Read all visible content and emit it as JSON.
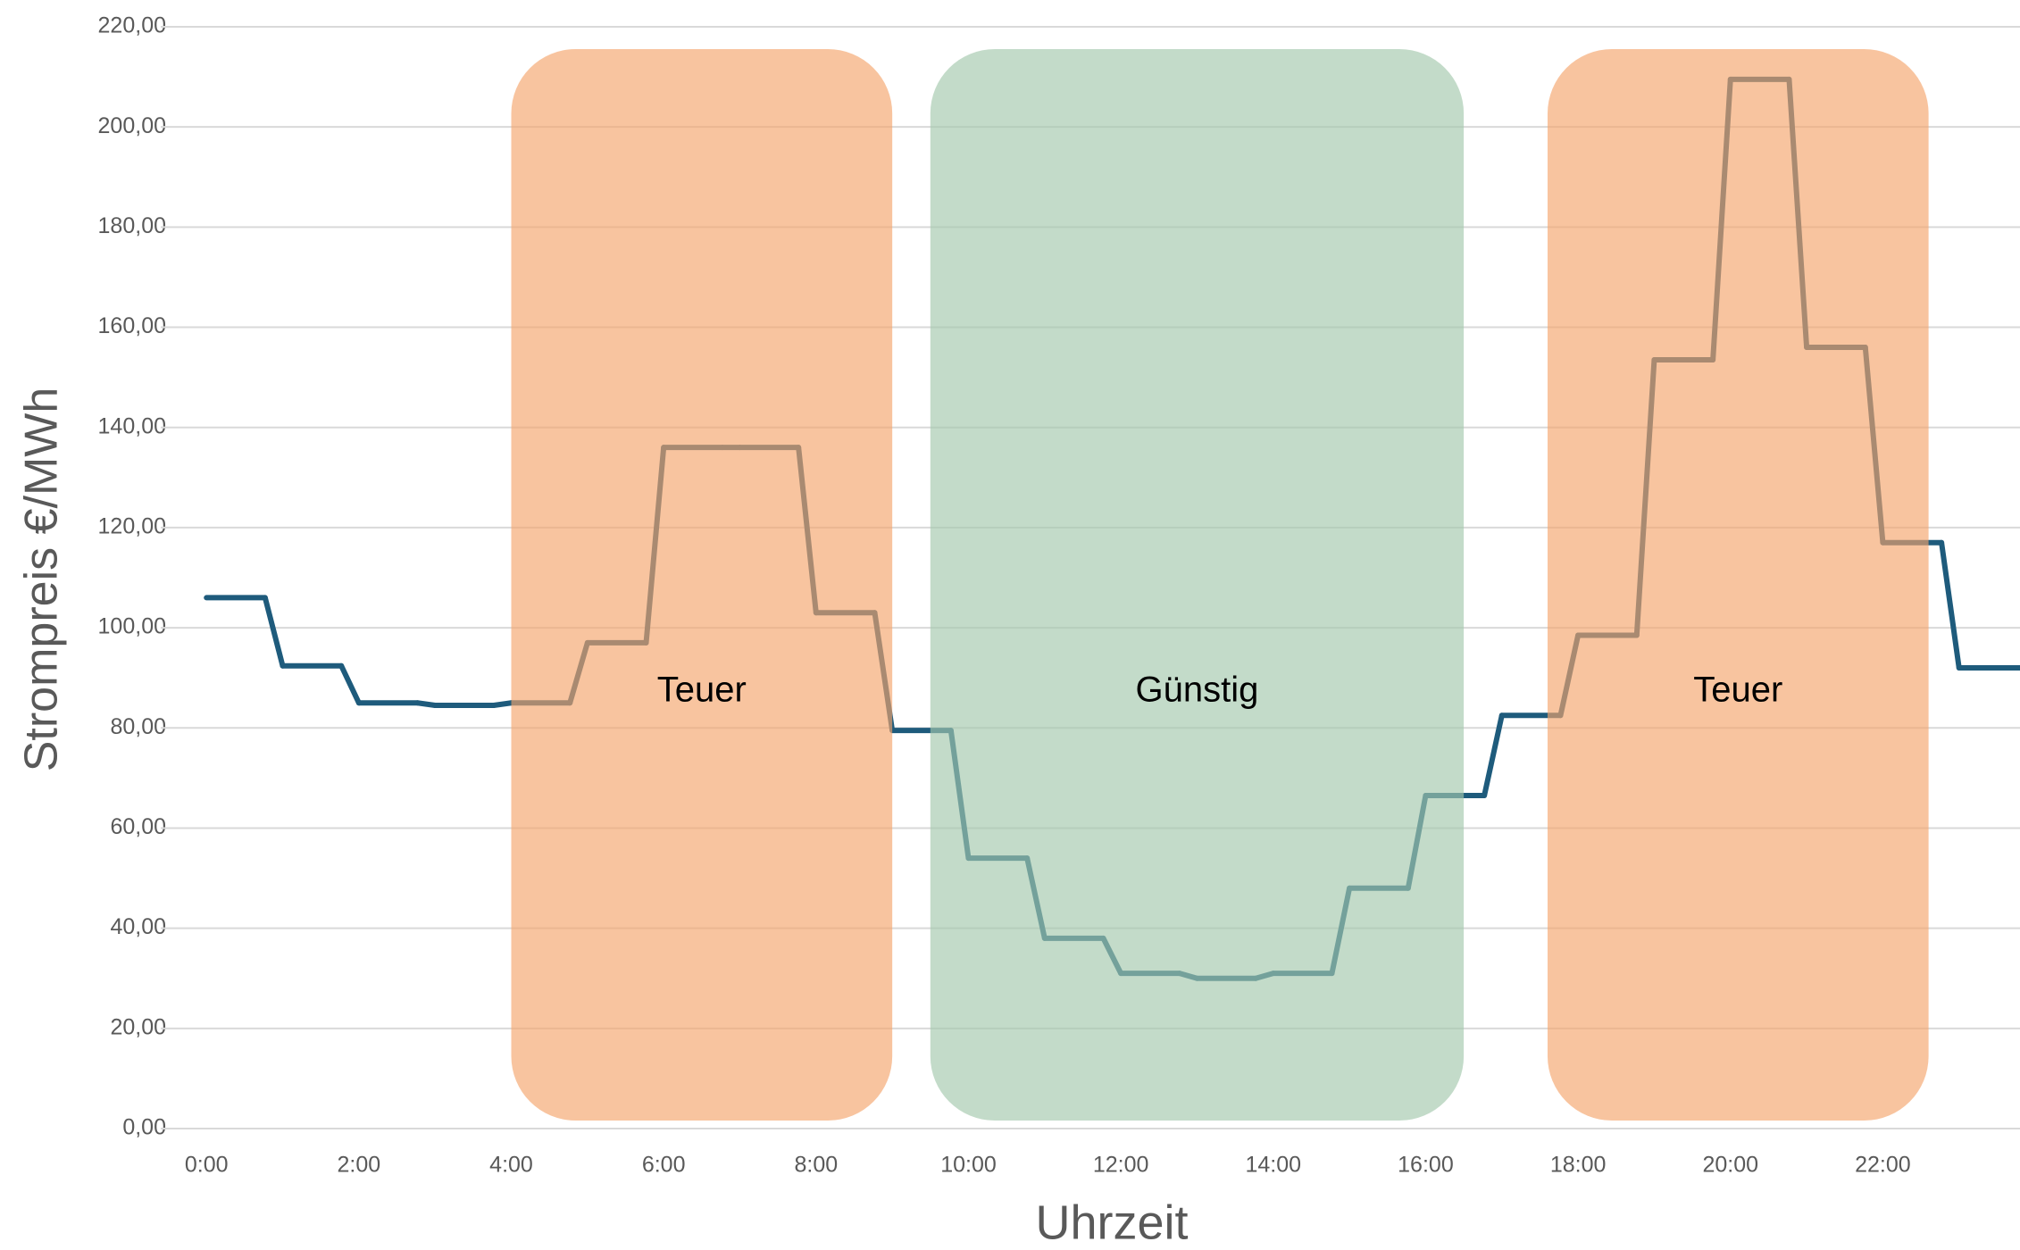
{
  "chart_data": {
    "type": "line",
    "x_label": "Uhrzeit",
    "y_label": "Strompreis €/MWh",
    "x": [
      0,
      1,
      2,
      3,
      4,
      5,
      6,
      7,
      8,
      9,
      10,
      11,
      12,
      13,
      14,
      15,
      16,
      17,
      18,
      19,
      20,
      21,
      22,
      23
    ],
    "series": [
      {
        "color": "#1e5b7c",
        "values": [
          106,
          92.4,
          85,
          84.5,
          85,
          97,
          136,
          136,
          103,
          79.5,
          54,
          38,
          31,
          30,
          31,
          48,
          66.5,
          82.5,
          98.5,
          153.5,
          209.5,
          156,
          117,
          92
        ]
      }
    ],
    "step": true,
    "xlim": [
      -0.6,
      23.8
    ],
    "xticks": [
      {
        "value": 0,
        "label": "0:00"
      },
      {
        "value": 2,
        "label": "2:00"
      },
      {
        "value": 4,
        "label": "4:00"
      },
      {
        "value": 6,
        "label": "6:00"
      },
      {
        "value": 8,
        "label": "8:00"
      },
      {
        "value": 10,
        "label": "10:00"
      },
      {
        "value": 12,
        "label": "12:00"
      },
      {
        "value": 14,
        "label": "14:00"
      },
      {
        "value": 16,
        "label": "16:00"
      },
      {
        "value": 18,
        "label": "18:00"
      },
      {
        "value": 20,
        "label": "20:00"
      },
      {
        "value": 22,
        "label": "22:00"
      }
    ],
    "ylim": [
      0,
      220
    ],
    "yticks": [
      {
        "value": 0,
        "label": "0,00"
      },
      {
        "value": 20,
        "label": "20,00"
      },
      {
        "value": 40,
        "label": "40,00"
      },
      {
        "value": 60,
        "label": "60,00"
      },
      {
        "value": 80,
        "label": "80,00"
      },
      {
        "value": 100,
        "label": "100,00"
      },
      {
        "value": 120,
        "label": "120,00"
      },
      {
        "value": 140,
        "label": "140,00"
      },
      {
        "value": 160,
        "label": "160,00"
      },
      {
        "value": 180,
        "label": "180,00"
      },
      {
        "value": 200,
        "label": "200,00"
      },
      {
        "value": 220,
        "label": "220,00"
      }
    ],
    "grid": true,
    "bands": [
      {
        "label": "Teuer",
        "start": 4,
        "end": 9,
        "color": "#f5a46b"
      },
      {
        "label": "Günstig",
        "start": 9.5,
        "end": 16.5,
        "color": "#a3c7ac"
      },
      {
        "label": "Teuer",
        "start": 17.6,
        "end": 22.6,
        "color": "#f5a46b"
      }
    ]
  }
}
